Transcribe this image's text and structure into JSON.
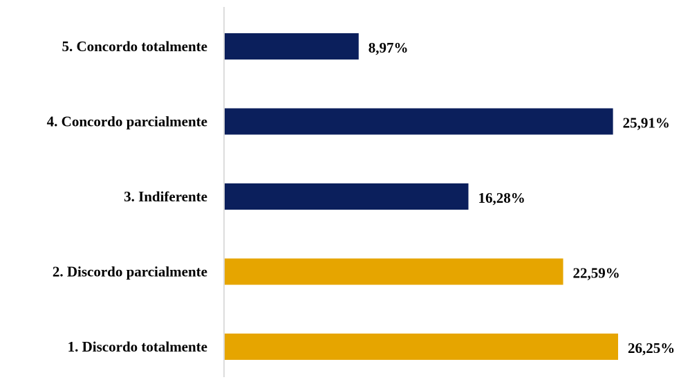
{
  "chart_data": {
    "type": "bar",
    "orientation": "horizontal",
    "title": "",
    "xlabel": "",
    "ylabel": "",
    "xlim": [
      0,
      26.25
    ],
    "grid": false,
    "legend": "none",
    "categories": [
      "5. Concordo totalmente",
      "4. Concordo parcialmente",
      "3. Indiferente",
      "2. Discordo parcialmente",
      "1. Discordo totalmente"
    ],
    "values": [
      8.97,
      25.91,
      16.28,
      22.59,
      26.25
    ],
    "data_labels": [
      "8,97%",
      "25,91%",
      "16,28%",
      "22,59%",
      "26,25%"
    ],
    "bar_colors": [
      "#0b1f5c",
      "#0b1f5c",
      "#0b1f5c",
      "#e6a500",
      "#e6a500"
    ],
    "axis_color": "#d0d0d0",
    "text_color": "#000000"
  }
}
